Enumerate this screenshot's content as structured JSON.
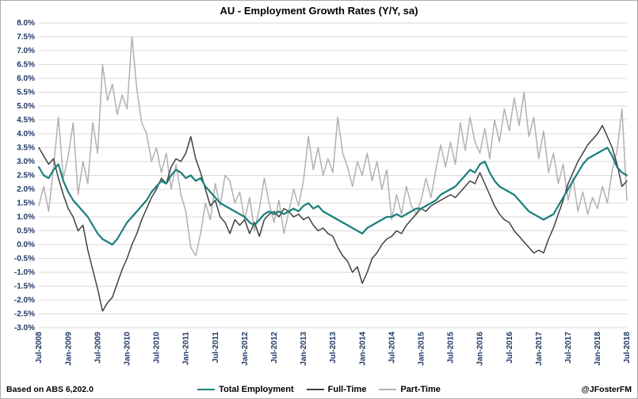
{
  "footer": {
    "source": "Based on ABS 6,202.0",
    "handle": "@JFosterFM"
  },
  "style": {
    "axis_label_color": "#1f3864",
    "grid_color": "#d9d9d9",
    "background": "#ffffff",
    "frame_border": "#ababab"
  },
  "chart_data": {
    "type": "line",
    "title": "AU - Employment Growth Rates (Y/Y, sa)",
    "x_start": "Jul-2008",
    "x_end": "Jul-2018",
    "x_freq": "monthly",
    "x_tick_every": 6,
    "x_tick_labels": [
      "Jul-2008",
      "Jan-2009",
      "Jul-2009",
      "Jan-2010",
      "Jul-2010",
      "Jan-2011",
      "Jul-2011",
      "Jan-2012",
      "Jul-2012",
      "Jan-2013",
      "Jul-2013",
      "Jan-2014",
      "Jul-2014",
      "Jan-2015",
      "Jul-2015",
      "Jan-2016",
      "Jul-2016",
      "Jan-2017",
      "Jul-2017",
      "Jan-2018",
      "Jul-2018"
    ],
    "ylabel": "",
    "xlabel": "",
    "ylim": [
      -3.0,
      8.0
    ],
    "y_tick_step": 0.5,
    "y_tick_format": "0.0%",
    "grid": "horizontal",
    "legend_position": "bottom",
    "series": [
      {
        "name": "Total Employment",
        "color": "#1a7f7b",
        "width": 2.2,
        "values": [
          2.8,
          2.5,
          2.4,
          2.7,
          2.9,
          2.3,
          1.9,
          1.6,
          1.4,
          1.2,
          1.0,
          0.7,
          0.4,
          0.2,
          0.1,
          0.0,
          0.2,
          0.5,
          0.8,
          1.0,
          1.2,
          1.4,
          1.6,
          1.9,
          2.1,
          2.3,
          2.2,
          2.5,
          2.7,
          2.6,
          2.4,
          2.5,
          2.3,
          2.4,
          2.1,
          1.9,
          1.7,
          1.5,
          1.4,
          1.3,
          1.2,
          1.1,
          1.0,
          0.8,
          0.7,
          0.9,
          1.1,
          1.2,
          1.1,
          1.2,
          1.1,
          1.2,
          1.3,
          1.2,
          1.4,
          1.5,
          1.3,
          1.4,
          1.2,
          1.1,
          1.0,
          0.9,
          0.8,
          0.7,
          0.6,
          0.5,
          0.4,
          0.6,
          0.7,
          0.8,
          0.9,
          1.0,
          1.0,
          1.1,
          1.0,
          1.1,
          1.2,
          1.3,
          1.3,
          1.4,
          1.5,
          1.6,
          1.8,
          1.9,
          2.0,
          2.1,
          2.3,
          2.5,
          2.7,
          2.6,
          2.9,
          3.0,
          2.6,
          2.3,
          2.1,
          2.0,
          1.9,
          1.8,
          1.6,
          1.4,
          1.2,
          1.1,
          1.0,
          0.9,
          1.0,
          1.1,
          1.4,
          1.7,
          2.0,
          2.3,
          2.6,
          2.9,
          3.1,
          3.2,
          3.3,
          3.4,
          3.5,
          3.2,
          2.8,
          2.6,
          2.5
        ]
      },
      {
        "name": "Full-Time",
        "color": "#404040",
        "width": 1.5,
        "values": [
          3.5,
          3.2,
          2.9,
          3.1,
          2.4,
          1.8,
          1.3,
          1.0,
          0.5,
          0.7,
          -0.2,
          -0.9,
          -1.6,
          -2.4,
          -2.1,
          -1.9,
          -1.4,
          -0.9,
          -0.5,
          0.0,
          0.4,
          0.9,
          1.3,
          1.7,
          2.0,
          2.4,
          2.2,
          2.8,
          3.1,
          3.0,
          3.3,
          3.9,
          3.1,
          2.6,
          2.0,
          1.4,
          1.6,
          1.0,
          0.8,
          0.4,
          0.9,
          0.7,
          0.9,
          0.4,
          0.8,
          0.3,
          0.9,
          1.1,
          1.2,
          1.0,
          1.3,
          1.2,
          1.0,
          1.1,
          0.9,
          1.0,
          0.7,
          0.5,
          0.6,
          0.4,
          0.3,
          -0.1,
          -0.4,
          -0.6,
          -1.0,
          -0.8,
          -1.4,
          -1.0,
          -0.5,
          -0.3,
          0.0,
          0.2,
          0.3,
          0.5,
          0.4,
          0.7,
          0.9,
          1.1,
          1.3,
          1.2,
          1.4,
          1.5,
          1.6,
          1.7,
          1.8,
          1.7,
          1.9,
          2.1,
          2.3,
          2.2,
          2.6,
          2.2,
          1.8,
          1.4,
          1.1,
          0.9,
          0.8,
          0.5,
          0.3,
          0.1,
          -0.1,
          -0.3,
          -0.2,
          -0.3,
          0.2,
          0.6,
          1.1,
          1.6,
          2.2,
          2.6,
          3.0,
          3.3,
          3.6,
          3.8,
          4.0,
          4.3,
          3.9,
          3.5,
          2.9,
          2.1,
          2.3
        ]
      },
      {
        "name": "Part-Time",
        "color": "#b1b1b1",
        "width": 1.5,
        "values": [
          1.4,
          2.1,
          1.2,
          2.8,
          4.6,
          2.4,
          3.2,
          4.4,
          1.8,
          3.0,
          2.2,
          4.4,
          3.3,
          6.5,
          5.2,
          5.8,
          4.7,
          5.4,
          4.9,
          7.5,
          5.6,
          4.4,
          4.0,
          3.0,
          3.5,
          2.6,
          3.3,
          2.0,
          2.9,
          1.8,
          1.2,
          -0.1,
          -0.4,
          0.4,
          1.5,
          0.9,
          2.2,
          1.4,
          2.5,
          2.3,
          1.5,
          1.9,
          0.9,
          1.7,
          0.5,
          1.3,
          2.4,
          1.5,
          0.8,
          1.6,
          0.4,
          1.2,
          2.0,
          1.4,
          2.3,
          3.9,
          2.7,
          3.5,
          2.5,
          3.1,
          2.6,
          4.6,
          3.3,
          2.8,
          2.1,
          3.0,
          2.5,
          3.3,
          2.3,
          3.0,
          2.0,
          2.7,
          0.9,
          1.8,
          1.1,
          2.1,
          1.4,
          1.1,
          1.6,
          2.4,
          1.7,
          2.7,
          3.6,
          2.8,
          3.7,
          2.9,
          4.4,
          3.4,
          4.6,
          3.7,
          3.3,
          4.2,
          3.1,
          4.5,
          3.7,
          4.9,
          4.1,
          5.3,
          4.3,
          5.5,
          3.9,
          4.6,
          3.1,
          4.1,
          2.6,
          3.3,
          2.2,
          2.9,
          1.6,
          2.4,
          1.2,
          1.9,
          1.1,
          1.7,
          1.3,
          2.1,
          1.5,
          2.7,
          3.4,
          4.9,
          1.6
        ]
      }
    ]
  }
}
